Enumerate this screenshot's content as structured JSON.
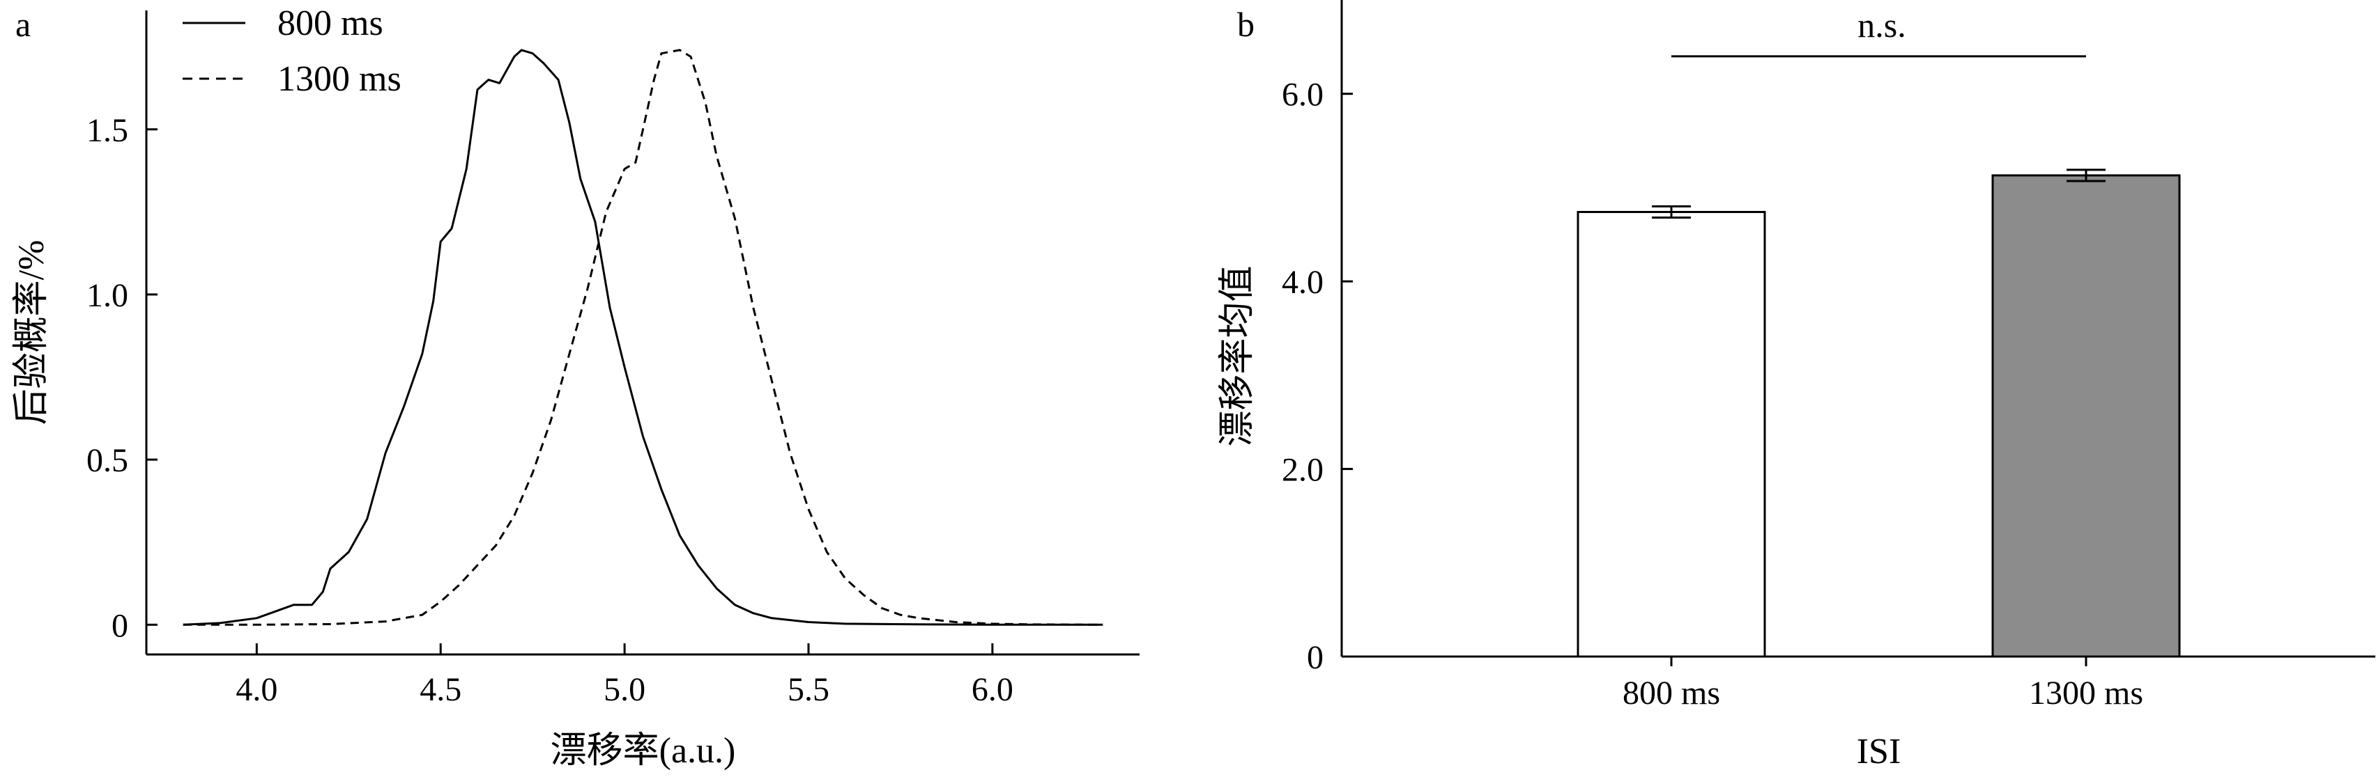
{
  "chart_data": [
    {
      "panel_label": "a",
      "type": "line",
      "xlabel": "漂移率(a.u.)",
      "ylabel": "后验概率/%",
      "xlim": [
        3.7,
        6.4
      ],
      "ylim": [
        -0.09,
        1.86
      ],
      "x_ticks": [
        4.0,
        4.5,
        5.0,
        5.5,
        6.0
      ],
      "x_tick_labels": [
        "4.0",
        "4.5",
        "5.0",
        "5.5",
        "6.0"
      ],
      "y_ticks": [
        0,
        0.5,
        1.0,
        1.5
      ],
      "y_tick_labels": [
        "0",
        "0.5",
        "1.0",
        "1.5"
      ],
      "legend_position": "top-left",
      "series": [
        {
          "name": "800 ms",
          "line_style": "solid",
          "points": [
            [
              3.8,
              0
            ],
            [
              3.9,
              0.005
            ],
            [
              4.0,
              0.02
            ],
            [
              4.05,
              0.04
            ],
            [
              4.1,
              0.06
            ],
            [
              4.15,
              0.06
            ],
            [
              4.18,
              0.1
            ],
            [
              4.2,
              0.17
            ],
            [
              4.25,
              0.22
            ],
            [
              4.3,
              0.32
            ],
            [
              4.35,
              0.52
            ],
            [
              4.4,
              0.66
            ],
            [
              4.45,
              0.82
            ],
            [
              4.48,
              0.98
            ],
            [
              4.5,
              1.16
            ],
            [
              4.53,
              1.2
            ],
            [
              4.57,
              1.38
            ],
            [
              4.6,
              1.62
            ],
            [
              4.63,
              1.65
            ],
            [
              4.66,
              1.64
            ],
            [
              4.7,
              1.72
            ],
            [
              4.72,
              1.74
            ],
            [
              4.75,
              1.73
            ],
            [
              4.78,
              1.7
            ],
            [
              4.82,
              1.65
            ],
            [
              4.85,
              1.52
            ],
            [
              4.88,
              1.35
            ],
            [
              4.92,
              1.22
            ],
            [
              4.96,
              0.96
            ],
            [
              5.0,
              0.78
            ],
            [
              5.05,
              0.57
            ],
            [
              5.1,
              0.41
            ],
            [
              5.15,
              0.27
            ],
            [
              5.2,
              0.18
            ],
            [
              5.25,
              0.11
            ],
            [
              5.3,
              0.06
            ],
            [
              5.35,
              0.035
            ],
            [
              5.4,
              0.02
            ],
            [
              5.5,
              0.008
            ],
            [
              5.6,
              0.003
            ],
            [
              5.8,
              0.001
            ],
            [
              6.0,
              0
            ],
            [
              6.3,
              0
            ]
          ]
        },
        {
          "name": "1300 ms",
          "line_style": "dashed",
          "points": [
            [
              3.8,
              0
            ],
            [
              4.0,
              0
            ],
            [
              4.2,
              0.002
            ],
            [
              4.35,
              0.01
            ],
            [
              4.45,
              0.03
            ],
            [
              4.5,
              0.07
            ],
            [
              4.55,
              0.12
            ],
            [
              4.6,
              0.18
            ],
            [
              4.65,
              0.24
            ],
            [
              4.7,
              0.33
            ],
            [
              4.75,
              0.46
            ],
            [
              4.8,
              0.62
            ],
            [
              4.85,
              0.82
            ],
            [
              4.9,
              1.02
            ],
            [
              4.95,
              1.25
            ],
            [
              5.0,
              1.38
            ],
            [
              5.03,
              1.4
            ],
            [
              5.05,
              1.5
            ],
            [
              5.08,
              1.65
            ],
            [
              5.1,
              1.73
            ],
            [
              5.15,
              1.74
            ],
            [
              5.18,
              1.72
            ],
            [
              5.22,
              1.58
            ],
            [
              5.25,
              1.42
            ],
            [
              5.3,
              1.23
            ],
            [
              5.35,
              0.96
            ],
            [
              5.4,
              0.74
            ],
            [
              5.45,
              0.52
            ],
            [
              5.5,
              0.35
            ],
            [
              5.55,
              0.22
            ],
            [
              5.6,
              0.14
            ],
            [
              5.65,
              0.09
            ],
            [
              5.7,
              0.05
            ],
            [
              5.75,
              0.03
            ],
            [
              5.8,
              0.02
            ],
            [
              5.9,
              0.008
            ],
            [
              6.0,
              0.003
            ],
            [
              6.1,
              0.001
            ],
            [
              6.3,
              0
            ]
          ]
        }
      ]
    },
    {
      "panel_label": "b",
      "type": "bar",
      "xlabel": "ISI",
      "ylabel": "漂移率均值",
      "ylim": [
        0,
        7.0
      ],
      "y_ticks": [
        0,
        2.0,
        4.0,
        6.0
      ],
      "y_tick_labels": [
        "0",
        "2.0",
        "4.0",
        "6.0"
      ],
      "categories": [
        "800 ms",
        "1300 ms"
      ],
      "values": [
        4.74,
        5.13
      ],
      "errors": [
        0.06,
        0.06
      ],
      "bar_colors": [
        "#ffffff",
        "#8c8c8c"
      ],
      "significance": {
        "label": "n.s.",
        "y": 6.4
      }
    }
  ]
}
